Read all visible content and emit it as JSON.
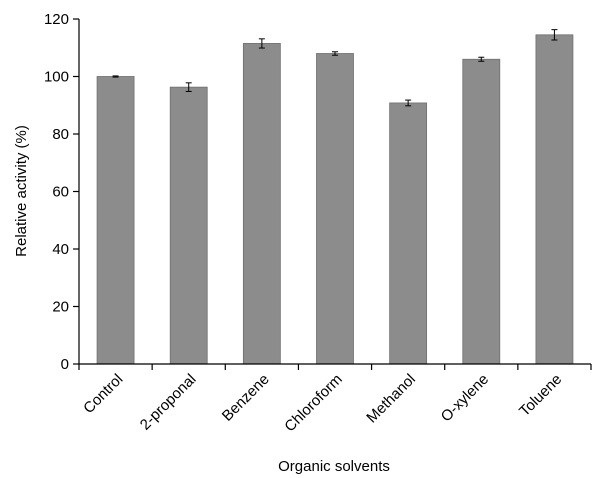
{
  "chart_data": {
    "type": "bar",
    "title": "",
    "xlabel": "Organic solvents",
    "ylabel": "Relative activity (%)",
    "ylim": [
      0,
      120
    ],
    "yticks": [
      0,
      20,
      40,
      60,
      80,
      100,
      120
    ],
    "grid": false,
    "categories": [
      "Control",
      "2-proponal",
      "Benzene",
      "Chloroform",
      "Methanol",
      "O-xylene",
      "Toluene"
    ],
    "values": [
      100,
      96.3,
      111.5,
      108,
      90.8,
      106,
      114.5
    ],
    "errors": [
      0.2,
      1.5,
      1.6,
      0.6,
      1.0,
      0.7,
      1.8
    ],
    "colors": {
      "bar": "#8c8c8c",
      "bar_edge": "#6e6e6e",
      "axis": "#000000"
    }
  }
}
